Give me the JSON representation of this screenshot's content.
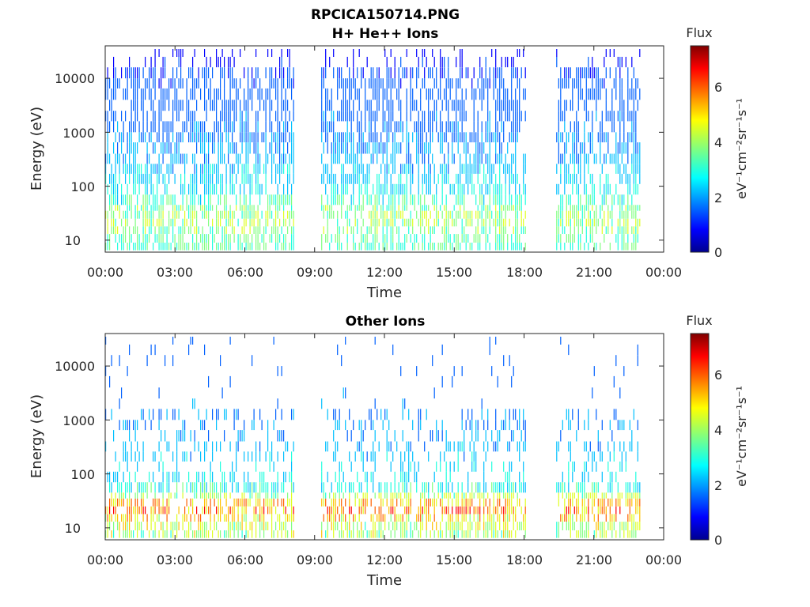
{
  "figure": {
    "title_line1": "RPCICA150714.PNG",
    "colormap": [
      "#00008f",
      "#0000ff",
      "#0060ff",
      "#00c0ff",
      "#20ffdf",
      "#80ff80",
      "#dfff20",
      "#ffc000",
      "#ff6000",
      "#ff0000",
      "#800000"
    ]
  },
  "chart_data": [
    {
      "type": "heatmap",
      "title": "H+ He++ Ions",
      "xlabel": "Time",
      "ylabel": "Energy (eV)",
      "y_scale": "log",
      "ylim": [
        6,
        40000
      ],
      "xlim": [
        "00:00",
        "24:00"
      ],
      "x_ticks": [
        "00:00",
        "03:00",
        "06:00",
        "09:00",
        "12:00",
        "15:00",
        "18:00",
        "21:00",
        "00:00"
      ],
      "y_ticks": [
        "10",
        "100",
        "1000",
        "10000"
      ],
      "colorbar": {
        "label": "Flux",
        "units": "eV⁻¹cm⁻²sr⁻¹s⁻¹",
        "range": [
          0,
          7.5
        ],
        "ticks": [
          "0",
          "2",
          "4",
          "6"
        ]
      },
      "data_segments": [
        {
          "start": "00:00",
          "end": "08:07"
        },
        {
          "start": "09:17",
          "end": "18:07"
        },
        {
          "start": "19:23",
          "end": "23:00"
        }
      ],
      "flux_profile": [
        {
          "energy": 10,
          "flux": 3.5
        },
        {
          "energy": 25,
          "flux": 4.3
        },
        {
          "energy": 100,
          "flux": 2.7
        },
        {
          "energy": 1000,
          "flux": 1.8
        },
        {
          "energy": 10000,
          "flux": 1.4
        },
        {
          "energy": 30000,
          "flux": 0.9
        }
      ]
    },
    {
      "type": "heatmap",
      "title": "Other Ions",
      "xlabel": "Time",
      "ylabel": "Energy (eV)",
      "y_scale": "log",
      "ylim": [
        6,
        40000
      ],
      "xlim": [
        "00:00",
        "24:00"
      ],
      "x_ticks": [
        "00:00",
        "03:00",
        "06:00",
        "09:00",
        "12:00",
        "15:00",
        "18:00",
        "21:00",
        "00:00"
      ],
      "y_ticks": [
        "10",
        "100",
        "1000",
        "10000"
      ],
      "colorbar": {
        "label": "Flux",
        "units": "eV⁻¹cm⁻²sr⁻¹s⁻¹",
        "range": [
          0,
          7.5
        ],
        "ticks": [
          "0",
          "2",
          "4",
          "6"
        ]
      },
      "data_segments": [
        {
          "start": "00:00",
          "end": "08:07"
        },
        {
          "start": "09:17",
          "end": "18:07"
        },
        {
          "start": "19:23",
          "end": "23:00"
        }
      ],
      "flux_profile": [
        {
          "energy": 10,
          "flux": 4.3
        },
        {
          "energy": 25,
          "flux": 6.3
        },
        {
          "energy": 50,
          "flux": 3.2
        },
        {
          "energy": 150,
          "flux": 2.5
        },
        {
          "energy": 1000,
          "flux": 2.0
        },
        {
          "energy": 10000,
          "flux": 1.5
        }
      ]
    }
  ]
}
